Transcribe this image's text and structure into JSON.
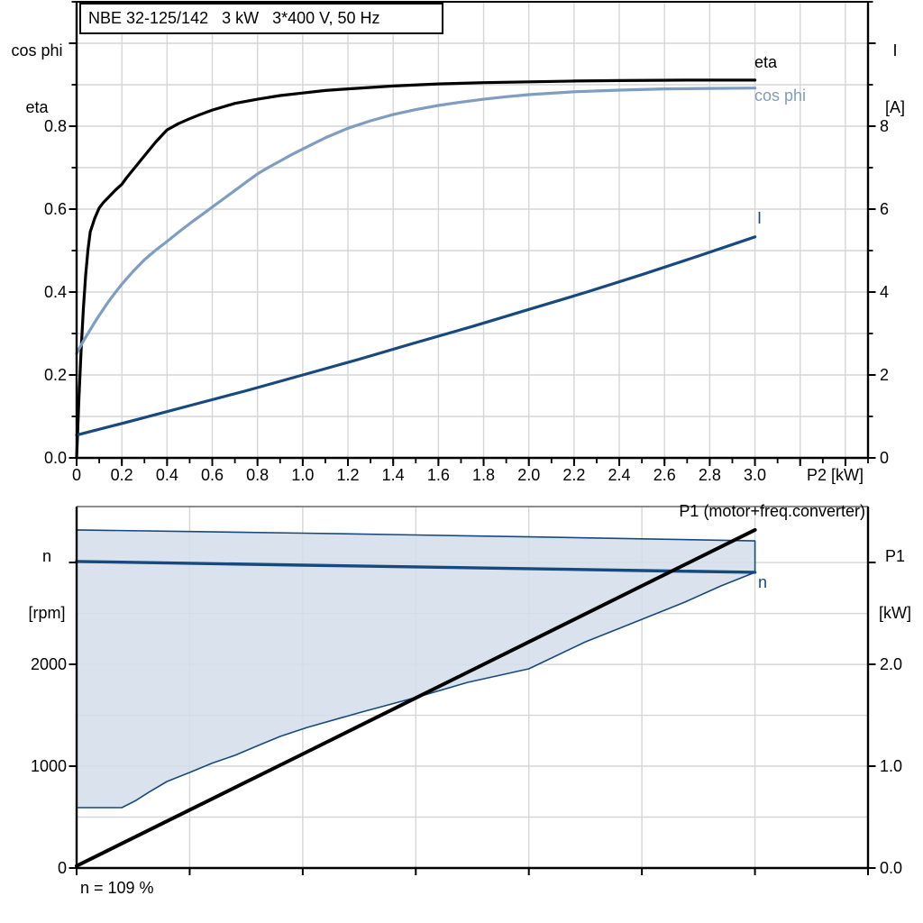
{
  "title_box": {
    "text": "NBE 32-125/142   3 kW   3*400 V, 50 Hz"
  },
  "labels": {
    "top_left": [
      "cos phi",
      "eta"
    ],
    "top_right": [
      "I",
      "[A]"
    ],
    "bottom_left": [
      "n",
      "[rpm]"
    ],
    "bottom_right": [
      "P1",
      "[kW]"
    ],
    "x_axis": "P2 [kW]",
    "curve_eta": "eta",
    "curve_cosphi": "cos phi",
    "curve_i": "I",
    "curve_n": "n",
    "curve_p1": "P1 (motor+freq.converter)",
    "annotation": "n = 109 %"
  },
  "colors": {
    "black": "#000000",
    "steel_blue": "#7f9dc1",
    "dark_blue": "#17497e",
    "band_fill": "#d3deea",
    "grid": "#d6d6d6",
    "border_gray": "#8c8c8c",
    "white": "#ffffff"
  },
  "chart_data": [
    {
      "type": "line",
      "title": "NBE 32-125/142   3 kW   3*400 V, 50 Hz",
      "x": {
        "label": "P2 [kW]",
        "min": 0,
        "max": 3.5,
        "grid_step": 0.2,
        "minor_step": 0.1,
        "major_step": 0.2,
        "tick_labels": [
          "0",
          "0.2",
          "0.4",
          "0.6",
          "0.8",
          "1.0",
          "1.2",
          "1.4",
          "1.6",
          "1.8",
          "2.0",
          "2.2",
          "2.4",
          "2.6",
          "2.8",
          "3.0"
        ]
      },
      "y_left": {
        "label": "cos phi / eta",
        "min": 0,
        "max": 1.1,
        "grid_step": 0.1,
        "minor_step": 0.1,
        "major_step": 0.2,
        "tick_labels": [
          "0.0",
          "0.2",
          "0.4",
          "0.6",
          "0.8"
        ]
      },
      "y_right": {
        "label": "I [A]",
        "min": 0,
        "max": 11,
        "grid_step": 1,
        "minor_step": 1,
        "major_step": 2,
        "tick_labels": [
          "0",
          "2",
          "4",
          "6",
          "8"
        ]
      },
      "series": [
        {
          "name": "eta",
          "axis": "left",
          "color_key": "black",
          "width": 3.2,
          "points": [
            [
              0,
              0
            ],
            [
              0.005,
              0.07
            ],
            [
              0.01,
              0.14
            ],
            [
              0.02,
              0.26
            ],
            [
              0.03,
              0.36
            ],
            [
              0.04,
              0.44
            ],
            [
              0.05,
              0.5
            ],
            [
              0.06,
              0.545
            ],
            [
              0.08,
              0.578
            ],
            [
              0.1,
              0.603
            ],
            [
              0.12,
              0.617
            ],
            [
              0.14,
              0.628
            ],
            [
              0.17,
              0.645
            ],
            [
              0.2,
              0.66
            ],
            [
              0.22,
              0.675
            ],
            [
              0.25,
              0.695
            ],
            [
              0.3,
              0.729
            ],
            [
              0.35,
              0.762
            ],
            [
              0.4,
              0.791
            ],
            [
              0.45,
              0.806
            ],
            [
              0.5,
              0.818
            ],
            [
              0.55,
              0.829
            ],
            [
              0.6,
              0.839
            ],
            [
              0.7,
              0.855
            ],
            [
              0.8,
              0.865
            ],
            [
              0.9,
              0.874
            ],
            [
              1,
              0.88
            ],
            [
              1.1,
              0.886
            ],
            [
              1.2,
              0.89
            ],
            [
              1.4,
              0.897
            ],
            [
              1.6,
              0.902
            ],
            [
              1.8,
              0.905
            ],
            [
              2,
              0.907
            ],
            [
              2.2,
              0.909
            ],
            [
              2.4,
              0.91
            ],
            [
              2.7,
              0.911
            ],
            [
              3,
              0.911
            ]
          ]
        },
        {
          "name": "cos phi",
          "axis": "left",
          "color_key": "steel_blue",
          "width": 3.2,
          "points": [
            [
              0,
              0.252
            ],
            [
              0.02,
              0.272
            ],
            [
              0.04,
              0.291
            ],
            [
              0.06,
              0.309
            ],
            [
              0.08,
              0.327
            ],
            [
              0.1,
              0.344
            ],
            [
              0.12,
              0.36
            ],
            [
              0.14,
              0.376
            ],
            [
              0.17,
              0.398
            ],
            [
              0.2,
              0.419
            ],
            [
              0.25,
              0.45
            ],
            [
              0.3,
              0.478
            ],
            [
              0.35,
              0.501
            ],
            [
              0.4,
              0.522
            ],
            [
              0.45,
              0.544
            ],
            [
              0.5,
              0.565
            ],
            [
              0.55,
              0.585
            ],
            [
              0.6,
              0.605
            ],
            [
              0.65,
              0.625
            ],
            [
              0.7,
              0.645
            ],
            [
              0.75,
              0.665
            ],
            [
              0.8,
              0.685
            ],
            [
              0.85,
              0.701
            ],
            [
              0.9,
              0.716
            ],
            [
              0.95,
              0.731
            ],
            [
              1,
              0.745
            ],
            [
              1.1,
              0.772
            ],
            [
              1.2,
              0.795
            ],
            [
              1.3,
              0.813
            ],
            [
              1.4,
              0.828
            ],
            [
              1.5,
              0.84
            ],
            [
              1.6,
              0.85
            ],
            [
              1.7,
              0.858
            ],
            [
              1.8,
              0.865
            ],
            [
              1.9,
              0.871
            ],
            [
              2,
              0.876
            ],
            [
              2.2,
              0.883
            ],
            [
              2.4,
              0.887
            ],
            [
              2.6,
              0.89
            ],
            [
              2.8,
              0.891
            ],
            [
              3,
              0.892
            ]
          ]
        },
        {
          "name": "I",
          "axis": "right",
          "color_key": "dark_blue",
          "width": 3.2,
          "points": [
            [
              0,
              0.55
            ],
            [
              0.25,
              0.9
            ],
            [
              0.5,
              1.26
            ],
            [
              0.75,
              1.62
            ],
            [
              1,
              2
            ],
            [
              1.25,
              2.38
            ],
            [
              1.5,
              2.78
            ],
            [
              1.75,
              3.17
            ],
            [
              2,
              3.58
            ],
            [
              2.25,
              3.99
            ],
            [
              2.5,
              4.42
            ],
            [
              2.75,
              4.87
            ],
            [
              3,
              5.33
            ]
          ]
        }
      ]
    },
    {
      "type": "line+area",
      "x": {
        "label": "",
        "min": 0,
        "max": 3.5,
        "grid_step": 0.5,
        "major_step": 0.5,
        "tick_labels": []
      },
      "y_left": {
        "label": "n [rpm]",
        "min": 0,
        "max": 3549,
        "grid_step": 500,
        "tick_labels": [
          "0",
          "1000",
          "2000"
        ],
        "extra_major_ticks": [
          3000
        ],
        "major_every": 1000
      },
      "y_right": {
        "label": "P1 [kW]",
        "min": 0,
        "max": 3.549,
        "tick_labels": [
          "0.0",
          "1.0",
          "2.0"
        ],
        "extra_major_ticks": [
          3
        ]
      },
      "band": {
        "name": "speed-control-range",
        "fill_key": "band_fill",
        "outline_key": "dark_blue",
        "upper": [
          [
            0,
            3320
          ],
          [
            0.5,
            3304
          ],
          [
            1,
            3288
          ],
          [
            1.5,
            3270
          ],
          [
            2,
            3252
          ],
          [
            2.5,
            3232
          ],
          [
            3,
            3212
          ]
        ],
        "lower": [
          [
            0,
            593
          ],
          [
            0.2,
            593
          ],
          [
            0.26,
            660
          ],
          [
            0.32,
            745
          ],
          [
            0.4,
            850
          ],
          [
            0.5,
            938
          ],
          [
            0.6,
            1030
          ],
          [
            0.7,
            1106
          ],
          [
            0.8,
            1200
          ],
          [
            0.9,
            1292
          ],
          [
            1.02,
            1381
          ],
          [
            1.26,
            1531
          ],
          [
            1.51,
            1681
          ],
          [
            1.73,
            1823
          ],
          [
            2,
            1956
          ],
          [
            2.25,
            2221
          ],
          [
            2.45,
            2398
          ],
          [
            2.69,
            2611
          ],
          [
            2.85,
            2770
          ],
          [
            3,
            2903
          ]
        ]
      },
      "series": [
        {
          "name": "n",
          "axis": "left",
          "color_key": "dark_blue",
          "width": 3.4,
          "points": [
            [
              0,
              3010
            ],
            [
              0.5,
              2992
            ],
            [
              1,
              2974
            ],
            [
              1.5,
              2957
            ],
            [
              2,
              2939
            ],
            [
              2.5,
              2921
            ],
            [
              3,
              2904
            ]
          ]
        },
        {
          "name": "P1 (motor+freq.converter)",
          "axis": "right",
          "color_key": "black",
          "width": 4,
          "points": [
            [
              0,
              0.02
            ],
            [
              0.5,
              0.57
            ],
            [
              1,
              1.12
            ],
            [
              1.5,
              1.67
            ],
            [
              2,
              2.22
            ],
            [
              2.5,
              2.77
            ],
            [
              3,
              3.32
            ]
          ]
        }
      ],
      "annotation": "n = 109 %"
    }
  ]
}
